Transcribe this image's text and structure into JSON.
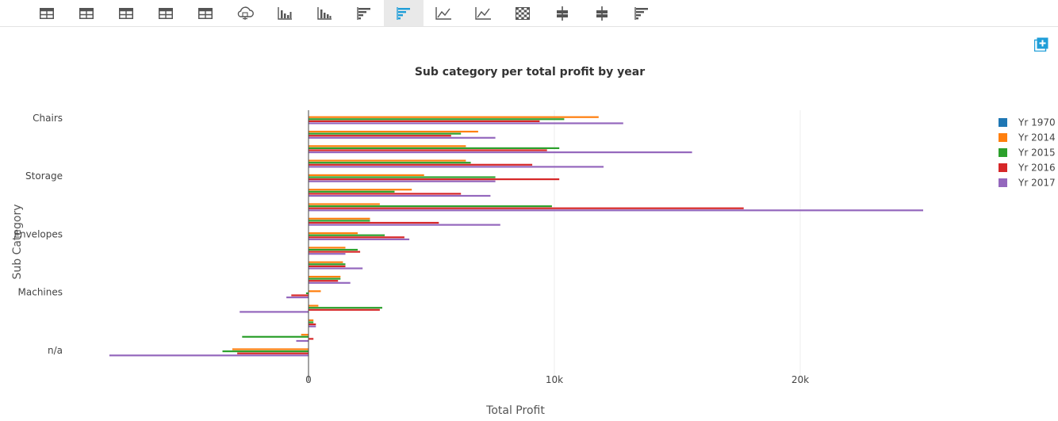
{
  "toolbar": {
    "buttons": [
      {
        "name": "table-view-button-1",
        "icon": "table-icon"
      },
      {
        "name": "table-view-button-2",
        "icon": "table-icon"
      },
      {
        "name": "table-view-button-3",
        "icon": "table-icon"
      },
      {
        "name": "table-view-button-4",
        "icon": "table-icon"
      },
      {
        "name": "table-view-button-5",
        "icon": "table-icon"
      },
      {
        "name": "cloud-view-button",
        "icon": "cloud-icon"
      },
      {
        "name": "vertical-bar-button",
        "icon": "vertical-bar-chart-icon"
      },
      {
        "name": "stacked-vertical-bar-button",
        "icon": "stacked-bar-chart-icon"
      },
      {
        "name": "horizontal-bar-button",
        "icon": "horizontal-bar-chart-icon"
      },
      {
        "name": "grouped-horizontal-bar-button",
        "icon": "horizontal-bar-chart-icon",
        "active": true
      },
      {
        "name": "line-chart-button",
        "icon": "line-chart-icon"
      },
      {
        "name": "area-line-chart-button",
        "icon": "line-chart-icon"
      },
      {
        "name": "heatmap-button",
        "icon": "heatmap-icon"
      },
      {
        "name": "box-plot-button",
        "icon": "box-plot-icon"
      },
      {
        "name": "box-plot-alt-button",
        "icon": "box-plot-icon"
      },
      {
        "name": "funnel-chart-button",
        "icon": "horizontal-bar-chart-icon"
      }
    ],
    "accent_color": "#1f9ed8"
  },
  "add_panel_icon": "add-panel-icon",
  "chart_data": {
    "type": "bar",
    "orientation": "horizontal",
    "title": "Sub category per total profit by year",
    "xlabel": "Total Profit",
    "ylabel": "Sub Category",
    "xlim": [
      -8200,
      25200
    ],
    "x_tick_values": [
      0,
      10000,
      20000
    ],
    "x_tick_labels": [
      "0",
      "10k",
      "20k"
    ],
    "y_tick_labels": [
      "Chairs",
      "Storage",
      "Envelopes",
      "Machines",
      "n/a"
    ],
    "y_tick_positions": [
      1,
      5,
      9,
      13,
      17
    ],
    "grid": true,
    "legend_position": "top-right",
    "categories": [
      "1",
      "2",
      "3",
      "4",
      "5",
      "6",
      "7",
      "8",
      "9",
      "10",
      "11",
      "12",
      "13",
      "14",
      "15",
      "16",
      "17"
    ],
    "series": [
      {
        "name": "Yr 1970",
        "color": "#1f77b4",
        "values": [
          0,
          0,
          0,
          0,
          0,
          0,
          0,
          0,
          0,
          0,
          0,
          0,
          0,
          0,
          0,
          0,
          0
        ]
      },
      {
        "name": "Yr 2014",
        "color": "#ff7f0e",
        "values": [
          11800,
          6900,
          6400,
          6400,
          4700,
          4200,
          2900,
          2500,
          2000,
          1500,
          1400,
          1300,
          500,
          400,
          200,
          -300,
          -3100
        ]
      },
      {
        "name": "Yr 2015",
        "color": "#2ca02c",
        "values": [
          10400,
          6200,
          10200,
          6600,
          7600,
          3500,
          9900,
          2500,
          3100,
          2000,
          1500,
          1300,
          -100,
          3000,
          200,
          -2700,
          -3500
        ]
      },
      {
        "name": "Yr 2016",
        "color": "#d62728",
        "values": [
          9400,
          5800,
          9700,
          9100,
          10200,
          6200,
          17700,
          5300,
          3900,
          2100,
          1500,
          1200,
          -700,
          2900,
          300,
          200,
          -2900
        ]
      },
      {
        "name": "Yr 2017",
        "color": "#9467bd",
        "values": [
          12800,
          7600,
          15600,
          12000,
          7600,
          7400,
          25000,
          7800,
          4100,
          1500,
          2200,
          1700,
          -900,
          -2800,
          300,
          -500,
          -8100
        ]
      }
    ]
  }
}
